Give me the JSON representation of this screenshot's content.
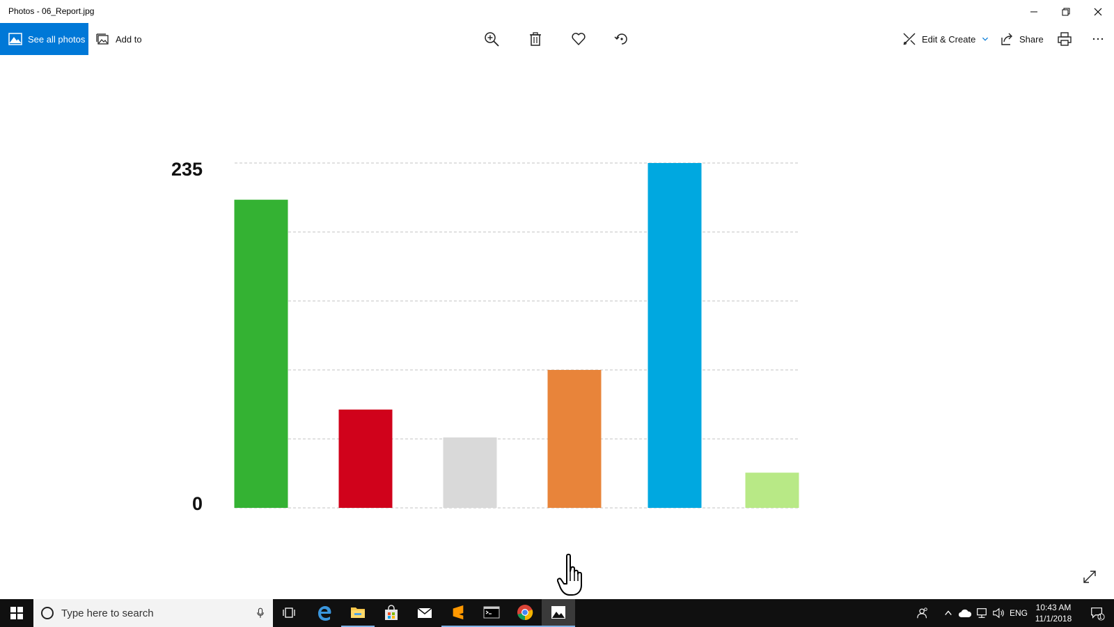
{
  "window": {
    "title": "Photos - 06_Report.jpg"
  },
  "toolbar": {
    "see_all_photos": "See all photos",
    "add_to": "Add to",
    "edit_create": "Edit & Create",
    "share": "Share"
  },
  "chart_data": {
    "type": "bar",
    "categories": [
      "",
      "",
      "",
      "",
      "",
      ""
    ],
    "values": [
      210,
      67,
      48,
      94,
      235,
      24
    ],
    "colors": [
      "#34b233",
      "#d0021b",
      "#d9d9d9",
      "#e8843a",
      "#00a8e0",
      "#b8e986"
    ],
    "ylim": [
      0,
      235
    ],
    "ytick_labels": [
      "235",
      "0"
    ],
    "grid": true
  },
  "taskbar": {
    "search_placeholder": "Type here to search",
    "language": "ENG",
    "time": "10:43 AM",
    "date": "11/1/2018",
    "notification_count": "1"
  },
  "accent_color": "#0078d7"
}
